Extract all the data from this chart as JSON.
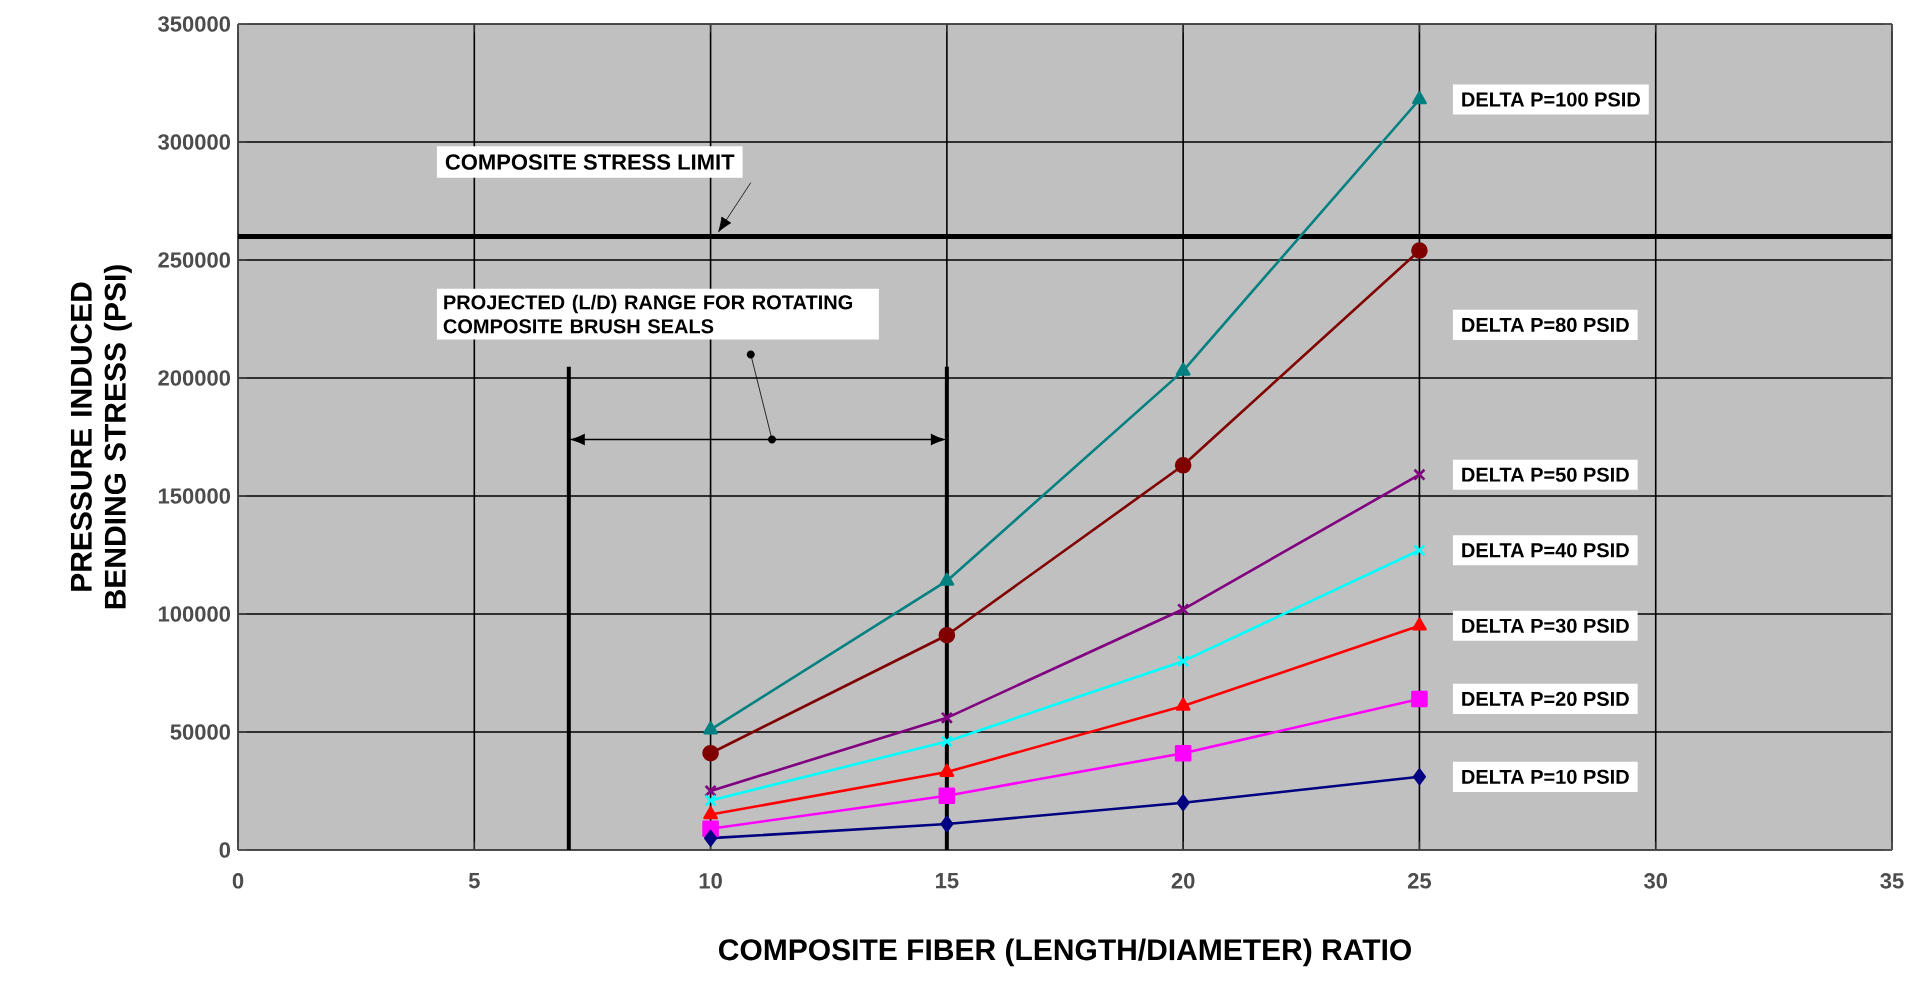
{
  "chart_data": {
    "type": "line",
    "xlabel": "COMPOSITE FIBER (LENGTH/DIAMETER) RATIO",
    "ylabel": "PRESSURE INDUCED BENDING STRESS (PSI)",
    "x": [
      10,
      15,
      20,
      25
    ],
    "series": [
      {
        "name": "DELTA P=100 PSID",
        "color": "#008080",
        "marker": "triangle",
        "values": [
          51000,
          114000,
          203000,
          318000
        ]
      },
      {
        "name": "DELTA P=80 PSID",
        "color": "#800000",
        "marker": "circle",
        "values": [
          41000,
          91000,
          163000,
          254000
        ]
      },
      {
        "name": "DELTA P=50 PSID",
        "color": "#800080",
        "marker": "cross",
        "values": [
          25000,
          56000,
          102000,
          159000
        ]
      },
      {
        "name": "DELTA P=40 PSID",
        "color": "#00ffff",
        "marker": "cross",
        "values": [
          21000,
          46000,
          80000,
          127000
        ]
      },
      {
        "name": "DELTA P=30 PSID",
        "color": "#ff0000",
        "marker": "triangle",
        "values": [
          15000,
          33000,
          61000,
          95000
        ]
      },
      {
        "name": "DELTA P=20 PSID",
        "color": "#ff00ff",
        "marker": "square",
        "values": [
          9000,
          23000,
          41000,
          64000
        ]
      },
      {
        "name": "DELTA P=10 PSID",
        "color": "#000080",
        "marker": "diamond",
        "values": [
          5000,
          11000,
          20000,
          31000
        ]
      }
    ],
    "xlim": [
      0,
      35
    ],
    "xticks": [
      0,
      5,
      10,
      15,
      20,
      25,
      30,
      35
    ],
    "ylim": [
      0,
      350000
    ],
    "yticks": [
      0,
      50000,
      100000,
      150000,
      200000,
      250000,
      300000,
      350000
    ],
    "grid": true,
    "line_style": "solid",
    "ref_lines": [
      {
        "axis": "y",
        "value": 260000,
        "label": "COMPOSITE STRESS LIMIT",
        "color": "#000000"
      },
      {
        "axis": "x",
        "value": 7,
        "color": "#000000"
      },
      {
        "axis": "x",
        "value": 15,
        "color": "#000000"
      }
    ],
    "annotations": [
      "PROJECTED (L/D) RANGE FOR ROTATING COMPOSITE BRUSH SEALS"
    ]
  }
}
